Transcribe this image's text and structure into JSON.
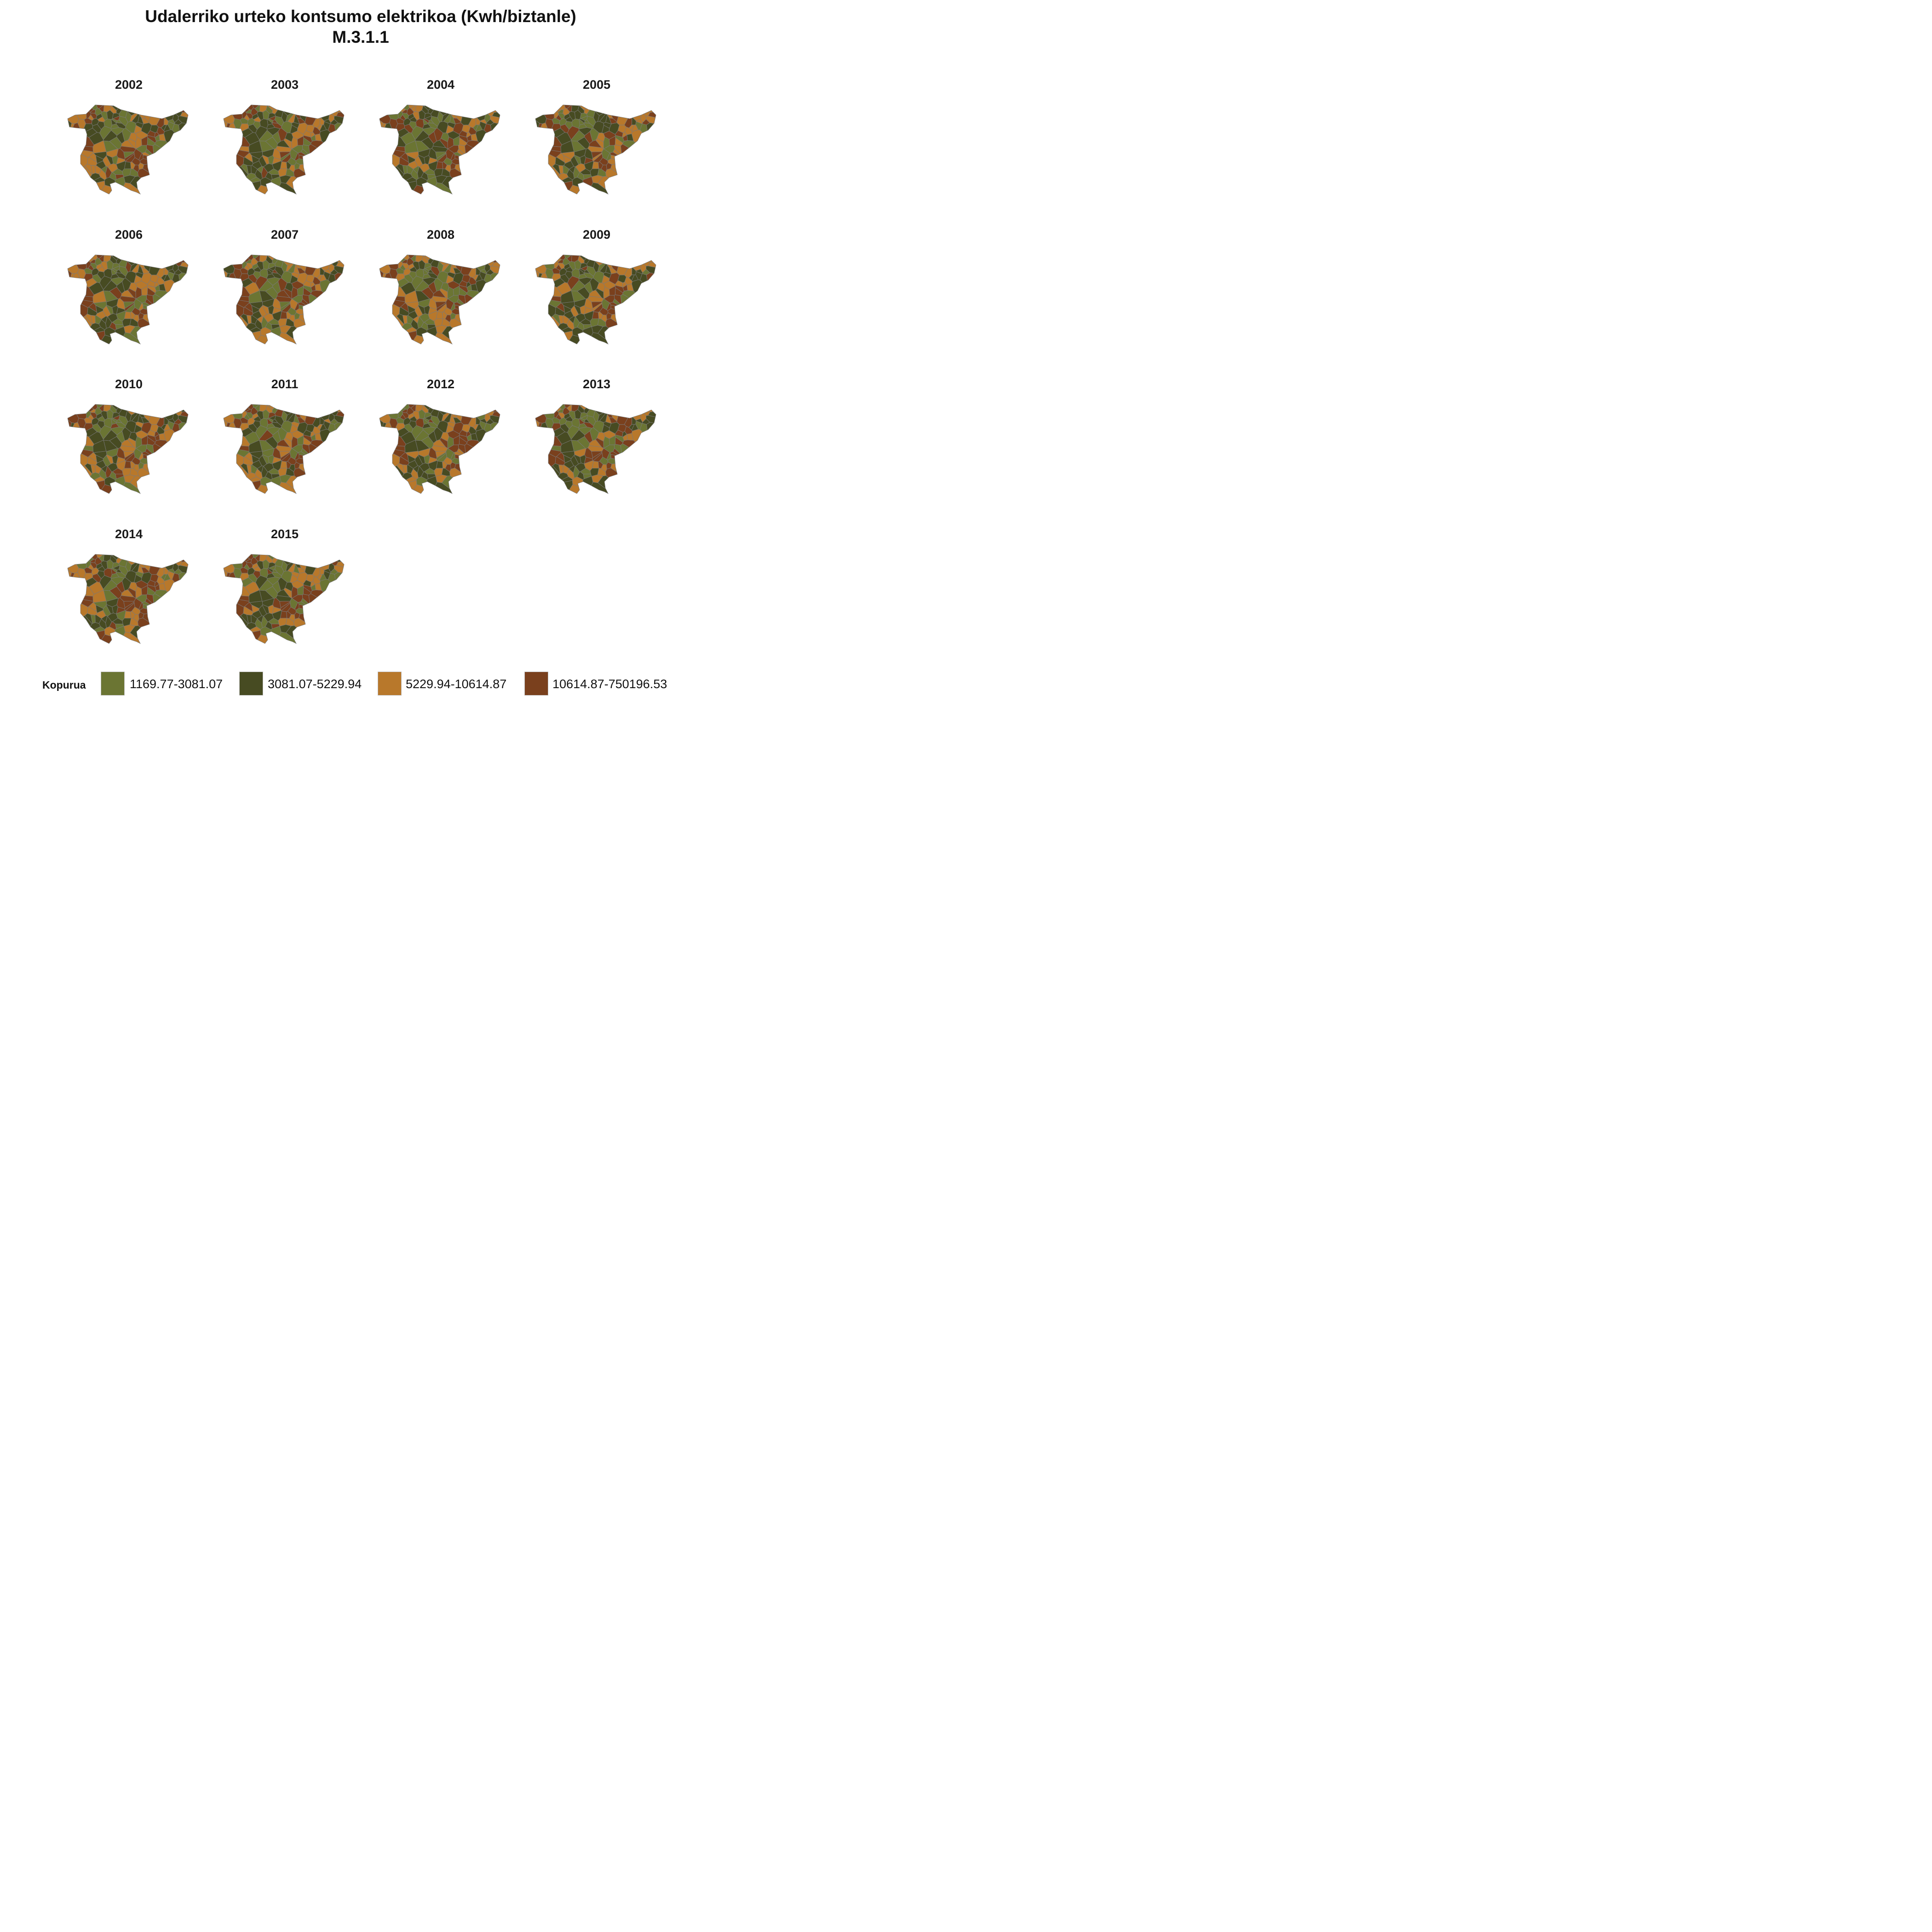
{
  "title": "Udalerriko urteko kontsumo elektrikoa  (Kwh/biztanle)",
  "subtitle": "M.3.1.1",
  "colors": {
    "c1": "#6b7533",
    "c2": "#474b22",
    "c3": "#b8782b",
    "c4": "#7a401d",
    "border": "#7a7a7a"
  },
  "legend": {
    "title": "Kopurua",
    "items": [
      {
        "label": "1169.77-3081.07",
        "color": "#6b7533"
      },
      {
        "label": "3081.07-5229.94",
        "color": "#474b22"
      },
      {
        "label": "5229.94-10614.87",
        "color": "#b8782b"
      },
      {
        "label": "10614.87-750196.53",
        "color": "#7a401d"
      }
    ]
  },
  "panels": [
    {
      "year": "2002"
    },
    {
      "year": "2003"
    },
    {
      "year": "2004"
    },
    {
      "year": "2005"
    },
    {
      "year": "2006"
    },
    {
      "year": "2007"
    },
    {
      "year": "2008"
    },
    {
      "year": "2009"
    },
    {
      "year": "2010"
    },
    {
      "year": "2011"
    },
    {
      "year": "2012"
    },
    {
      "year": "2013"
    },
    {
      "year": "2014"
    },
    {
      "year": "2015"
    }
  ]
}
